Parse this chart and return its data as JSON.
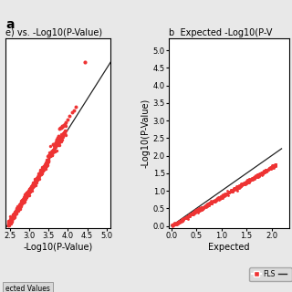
{
  "panel_a": {
    "title": "e) vs. -Log10(P-Value)",
    "xlabel": "-Log10(P-Value)",
    "xlim": [
      2.4,
      5.1
    ],
    "ylim": [
      2.4,
      5.5
    ],
    "xticks": [
      2.5,
      3.0,
      3.5,
      4.0,
      4.5,
      5.0
    ],
    "yticks": []
  },
  "panel_b": {
    "title": "Expected -Log10(P-V",
    "xlabel": "Expected",
    "ylabel": "-Log10(P-Value)",
    "xlim": [
      -0.05,
      2.35
    ],
    "ylim": [
      -0.05,
      5.35
    ],
    "xticks": [
      0.0,
      0.5,
      1.0,
      1.5,
      2.0
    ],
    "yticks": [
      0.0,
      0.5,
      1.0,
      1.5,
      2.0,
      2.5,
      3.0,
      3.5,
      4.0,
      4.5,
      5.0
    ],
    "legend_label": "FLS"
  },
  "scatter_color": "#EE3333",
  "scatter_size_a": 6,
  "scatter_size_b": 4,
  "line_color": "#222222",
  "line_width": 0.9,
  "fig_bg": "#E8E8E8",
  "panel_bg": "#FFFFFF",
  "tick_fontsize": 6,
  "label_fontsize": 7,
  "title_fontsize": 7
}
